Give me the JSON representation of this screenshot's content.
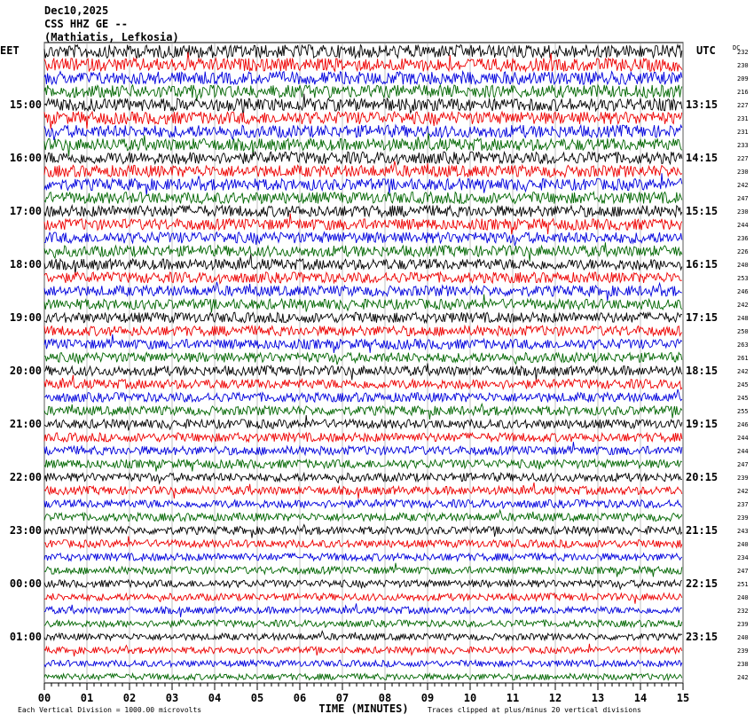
{
  "header": {
    "date": "Dec10,2025",
    "station": "CSS HHZ GE --",
    "location": "(Mathiatis, Lefkosia)"
  },
  "left_axis": {
    "title": "EET",
    "labels": [
      "15:00",
      "16:00",
      "17:00",
      "18:00",
      "19:00",
      "20:00",
      "21:00",
      "22:00",
      "23:00",
      "00:00",
      "01:00"
    ]
  },
  "right_axis": {
    "title": "UTC",
    "labels": [
      "13:15",
      "14:15",
      "15:15",
      "16:15",
      "17:15",
      "18:15",
      "19:15",
      "20:15",
      "21:15",
      "22:15",
      "23:15"
    ]
  },
  "dc": {
    "title": "DC",
    "values": [
      232,
      230,
      209,
      216,
      227,
      231,
      231,
      233,
      227,
      230,
      242,
      247,
      230,
      244,
      236,
      226,
      240,
      253,
      246,
      242,
      248,
      250,
      263,
      261,
      242,
      245,
      245,
      255,
      246,
      244,
      244,
      247,
      239,
      242,
      237,
      239,
      243,
      240,
      234,
      247,
      251,
      240,
      232,
      239,
      240,
      239,
      238,
      242
    ]
  },
  "x_axis": {
    "title": "TIME (MINUTES)",
    "labels": [
      "00",
      "01",
      "02",
      "03",
      "04",
      "05",
      "06",
      "07",
      "08",
      "09",
      "10",
      "11",
      "12",
      "13",
      "14",
      "15"
    ]
  },
  "footer": {
    "scale": "Each Vertical Division = 1000.00 microvolts",
    "clip": "Traces clipped at plus/minus 20 vertical divisions"
  }
}
